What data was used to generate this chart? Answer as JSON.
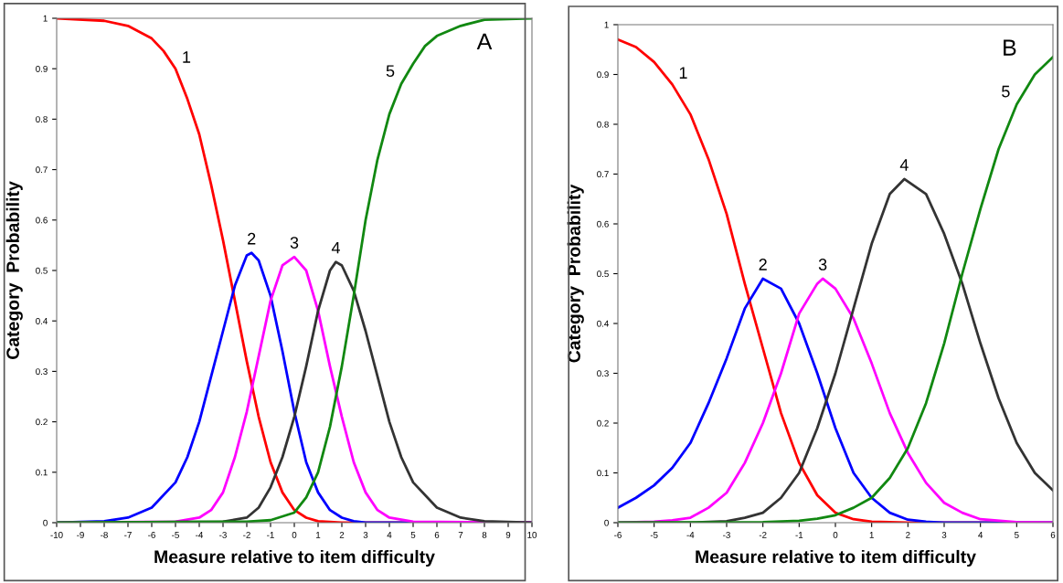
{
  "chart_data": [
    {
      "type": "line",
      "xlabel": "Measure relative to item difficulty",
      "ylabel": "Category  Probability",
      "xlim": [
        -10,
        10
      ],
      "ylim": [
        0,
        1
      ],
      "xticks": [
        -10,
        -9,
        -8,
        -7,
        -6,
        -5,
        -4,
        -3,
        -2,
        -1,
        0,
        1,
        2,
        3,
        4,
        5,
        6,
        7,
        8,
        9,
        10
      ],
      "yticks": [
        0,
        0.1,
        0.2,
        0.3,
        0.4,
        0.5,
        0.6,
        0.7,
        0.8,
        0.9,
        1
      ],
      "grid": false,
      "legend": false,
      "marker": "none",
      "line_style": "solid",
      "annotations": [
        "A"
      ],
      "series": [
        {
          "name": "1",
          "color": "#ff0000",
          "x": [
            -10,
            -8,
            -7,
            -6,
            -5.5,
            -5,
            -4.5,
            -4,
            -3.5,
            -3,
            -2.5,
            -2,
            -1.5,
            -1,
            -0.5,
            0,
            0.5,
            1,
            2,
            10
          ],
          "values": [
            1.0,
            0.995,
            0.985,
            0.96,
            0.935,
            0.9,
            0.84,
            0.77,
            0.67,
            0.56,
            0.44,
            0.32,
            0.21,
            0.12,
            0.06,
            0.025,
            0.01,
            0.003,
            0,
            0
          ]
        },
        {
          "name": "2",
          "color": "#0000ff",
          "x": [
            -10,
            -8,
            -7,
            -6,
            -5,
            -4.5,
            -4,
            -3.5,
            -3,
            -2.5,
            -2,
            -1.8,
            -1.5,
            -1,
            -0.5,
            0,
            0.5,
            1,
            1.5,
            2,
            2.5,
            3,
            10
          ],
          "values": [
            0,
            0.003,
            0.01,
            0.03,
            0.08,
            0.13,
            0.2,
            0.29,
            0.38,
            0.47,
            0.53,
            0.535,
            0.52,
            0.45,
            0.34,
            0.22,
            0.12,
            0.06,
            0.025,
            0.01,
            0.003,
            0,
            0
          ]
        },
        {
          "name": "3",
          "color": "#ff00ff",
          "x": [
            -10,
            -5,
            -4,
            -3.5,
            -3,
            -2.5,
            -2,
            -1.5,
            -1,
            -0.5,
            0,
            0.5,
            1,
            1.5,
            2,
            2.5,
            3,
            3.5,
            4,
            5,
            10
          ],
          "values": [
            0,
            0.002,
            0.01,
            0.025,
            0.06,
            0.13,
            0.22,
            0.33,
            0.44,
            0.51,
            0.527,
            0.5,
            0.42,
            0.31,
            0.21,
            0.12,
            0.06,
            0.025,
            0.01,
            0.002,
            0
          ]
        },
        {
          "name": "4",
          "color": "#333333",
          "x": [
            -10,
            -3,
            -2,
            -1.5,
            -1,
            -0.5,
            0,
            0.5,
            1,
            1.5,
            1.75,
            2,
            2.5,
            3,
            3.5,
            4,
            4.5,
            5,
            6,
            7,
            8,
            10
          ],
          "values": [
            0,
            0.002,
            0.01,
            0.03,
            0.07,
            0.13,
            0.21,
            0.31,
            0.42,
            0.5,
            0.517,
            0.51,
            0.46,
            0.38,
            0.29,
            0.2,
            0.13,
            0.08,
            0.03,
            0.01,
            0.003,
            0
          ]
        },
        {
          "name": "5",
          "color": "#118811",
          "x": [
            -10,
            -2,
            -1,
            0,
            0.5,
            1,
            1.5,
            2,
            2.5,
            3,
            3.5,
            4,
            4.5,
            5,
            5.5,
            6,
            7,
            8,
            10
          ],
          "values": [
            0,
            0.002,
            0.005,
            0.02,
            0.05,
            0.1,
            0.19,
            0.31,
            0.45,
            0.6,
            0.72,
            0.81,
            0.87,
            0.91,
            0.945,
            0.965,
            0.985,
            0.997,
            1.0
          ]
        }
      ]
    },
    {
      "type": "line",
      "xlabel": "Measure relative to item difficulty",
      "ylabel": "Category  Probability",
      "xlim": [
        -6,
        6
      ],
      "ylim": [
        0,
        1
      ],
      "xticks": [
        -6,
        -5,
        -4,
        -3,
        -2,
        -1,
        0,
        1,
        2,
        3,
        4,
        5,
        6
      ],
      "yticks": [
        0,
        0.1,
        0.2,
        0.3,
        0.4,
        0.5,
        0.6,
        0.7,
        0.8,
        0.9,
        1
      ],
      "grid": false,
      "legend": false,
      "marker": "none",
      "line_style": "solid",
      "annotations": [
        "B"
      ],
      "series": [
        {
          "name": "1",
          "color": "#ff0000",
          "x": [
            -6,
            -5.5,
            -5,
            -4.5,
            -4,
            -3.5,
            -3,
            -2.5,
            -2,
            -1.5,
            -1,
            -0.5,
            0,
            0.5,
            1,
            2,
            6
          ],
          "values": [
            0.97,
            0.955,
            0.925,
            0.88,
            0.82,
            0.73,
            0.62,
            0.48,
            0.35,
            0.22,
            0.12,
            0.055,
            0.02,
            0.007,
            0.002,
            0,
            0
          ]
        },
        {
          "name": "2",
          "color": "#0000ff",
          "x": [
            -6,
            -5.5,
            -5,
            -4.5,
            -4,
            -3.5,
            -3,
            -2.5,
            -2,
            -1.5,
            -1,
            -0.5,
            0,
            0.5,
            1,
            1.5,
            2,
            2.5,
            3,
            6
          ],
          "values": [
            0.03,
            0.05,
            0.075,
            0.11,
            0.16,
            0.24,
            0.33,
            0.43,
            0.49,
            0.47,
            0.4,
            0.3,
            0.19,
            0.1,
            0.05,
            0.02,
            0.006,
            0.002,
            0,
            0
          ]
        },
        {
          "name": "3",
          "color": "#ff00ff",
          "x": [
            -6,
            -5,
            -4.5,
            -4,
            -3.5,
            -3,
            -2.5,
            -2,
            -1.5,
            -1,
            -0.5,
            -0.35,
            0,
            0.5,
            1,
            1.5,
            2,
            2.5,
            3,
            3.5,
            4,
            5,
            6
          ],
          "values": [
            0,
            0.002,
            0.005,
            0.01,
            0.03,
            0.06,
            0.12,
            0.2,
            0.3,
            0.42,
            0.48,
            0.49,
            0.47,
            0.41,
            0.32,
            0.22,
            0.14,
            0.08,
            0.04,
            0.02,
            0.007,
            0.001,
            0
          ]
        },
        {
          "name": "4",
          "color": "#333333",
          "x": [
            -6,
            -4,
            -3,
            -2.5,
            -2,
            -1.5,
            -1,
            -0.5,
            0,
            0.5,
            1,
            1.5,
            1.9,
            2.5,
            3,
            3.5,
            4,
            4.5,
            5,
            5.5,
            6
          ],
          "values": [
            0,
            0,
            0.003,
            0.01,
            0.02,
            0.05,
            0.1,
            0.19,
            0.3,
            0.43,
            0.56,
            0.66,
            0.69,
            0.66,
            0.58,
            0.48,
            0.36,
            0.25,
            0.16,
            0.1,
            0.065
          ]
        },
        {
          "name": "5",
          "color": "#118811",
          "x": [
            -6,
            -2,
            -1,
            -0.5,
            0,
            0.5,
            1,
            1.5,
            2,
            2.5,
            3,
            3.5,
            4,
            4.5,
            5,
            5.5,
            6
          ],
          "values": [
            0,
            0.001,
            0.004,
            0.008,
            0.015,
            0.03,
            0.05,
            0.09,
            0.15,
            0.24,
            0.36,
            0.5,
            0.63,
            0.75,
            0.84,
            0.9,
            0.935
          ]
        }
      ]
    }
  ]
}
